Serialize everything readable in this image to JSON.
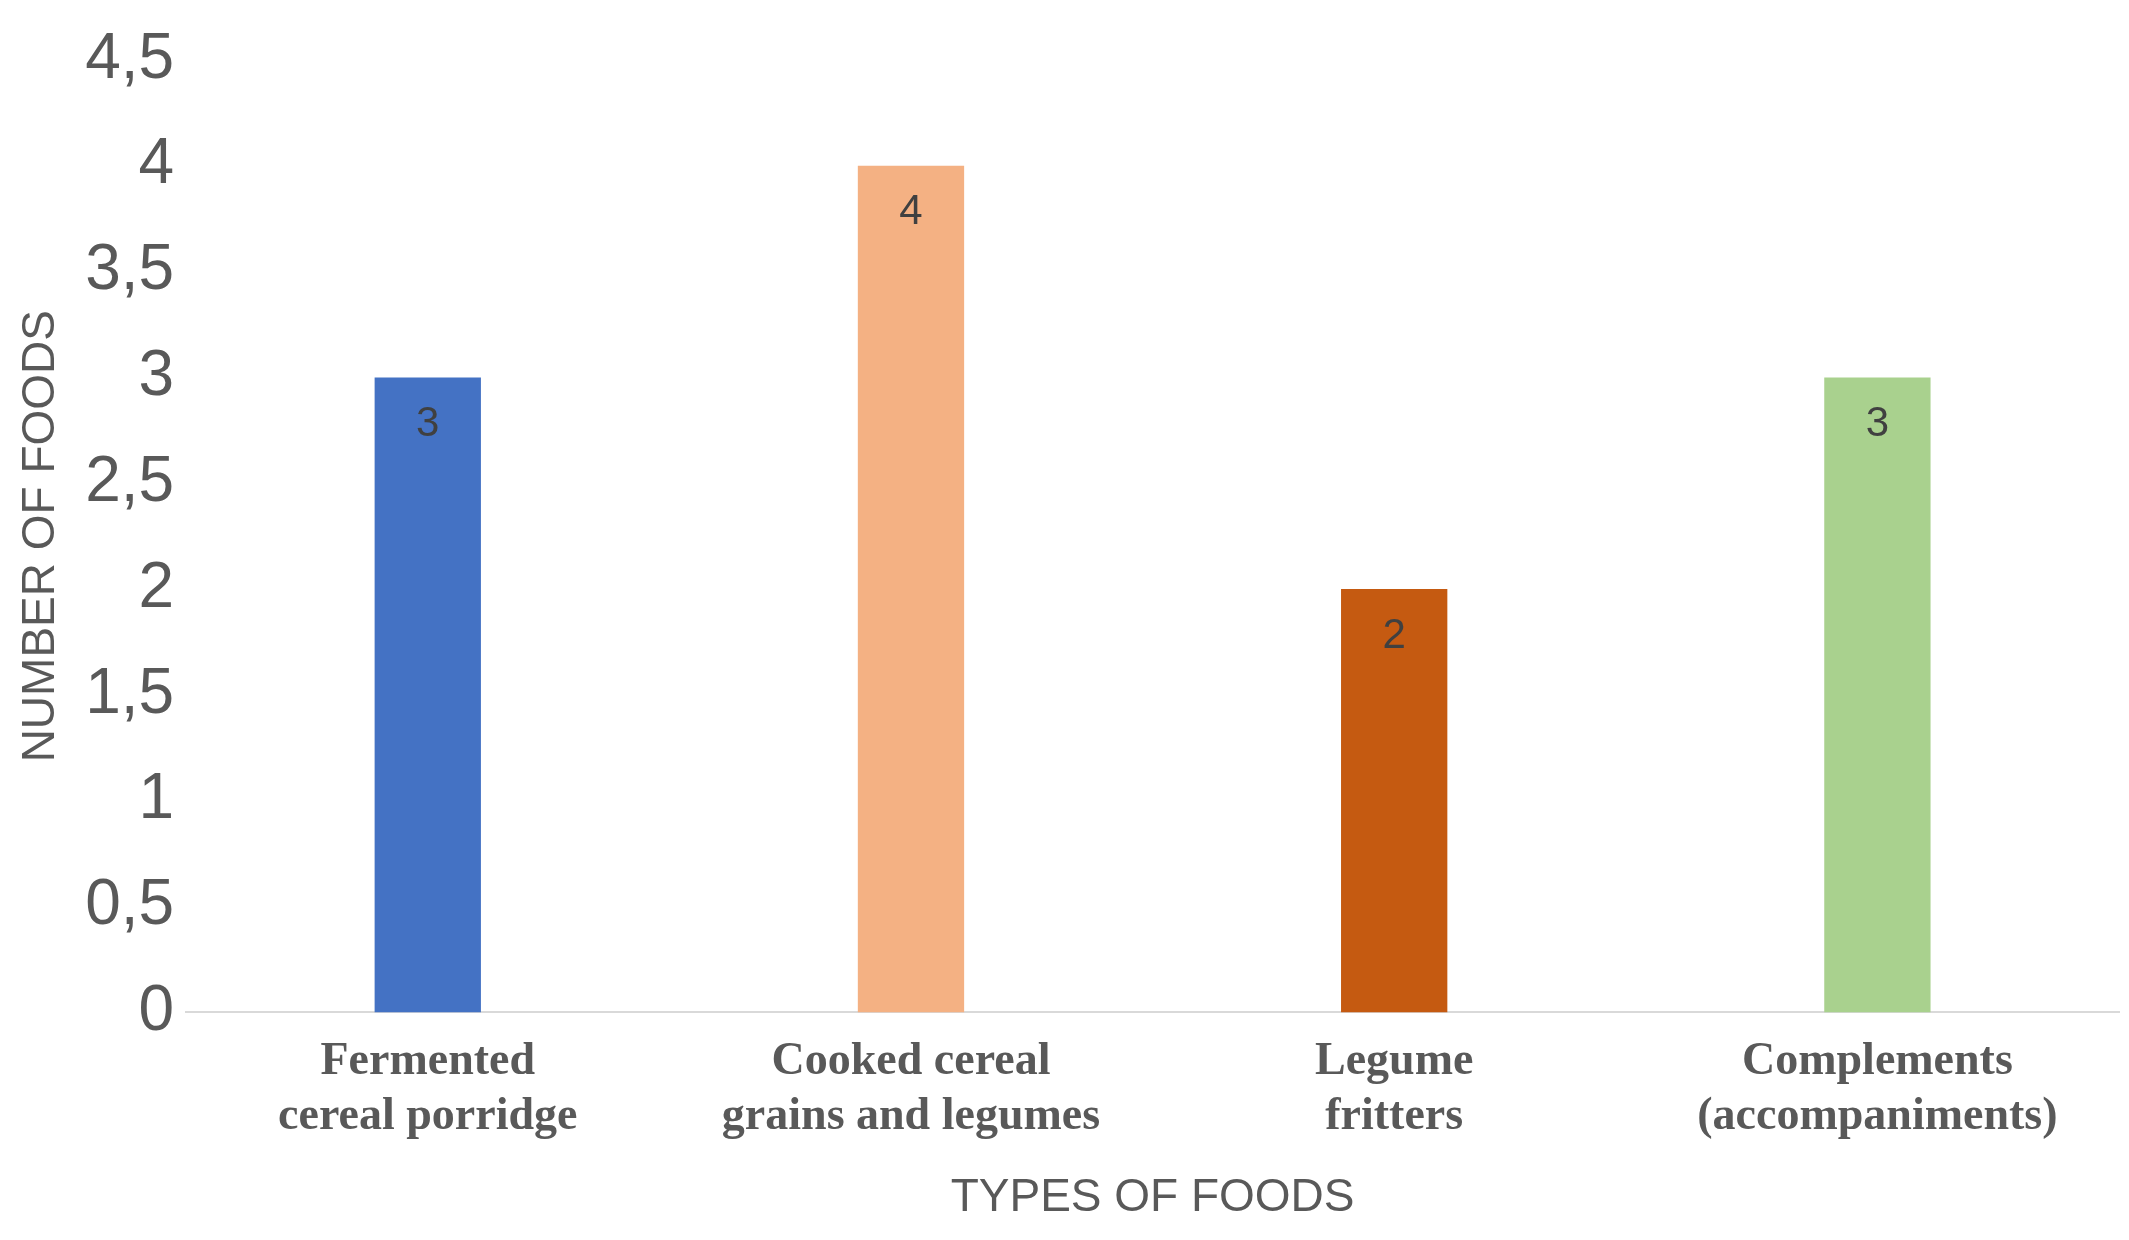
{
  "chart_data": {
    "type": "bar",
    "xlabel": "TYPES OF FOODS",
    "ylabel": "NUMBER OF FOODS",
    "categories": [
      "Fermented cereal porridge",
      "Cooked cereal grains and legumes",
      "Legume fritters",
      "Complements (accompaniments)"
    ],
    "values": [
      3,
      4,
      2,
      3
    ],
    "colors": [
      "#4472c4",
      "#f4b183",
      "#c55a11",
      "#a9d18e"
    ],
    "ylim": [
      0,
      4.5
    ],
    "yticks": [
      0,
      {
        "value": 0.5,
        "label": "0,5"
      },
      1,
      {
        "value": 1.5,
        "label": "1,5"
      },
      2,
      {
        "value": 2.5,
        "label": "2,5"
      },
      3,
      {
        "value": 3.5,
        "label": "3,5"
      },
      4,
      {
        "value": 4.5,
        "label": "4,5"
      }
    ],
    "grid": false,
    "data_labels": true
  }
}
